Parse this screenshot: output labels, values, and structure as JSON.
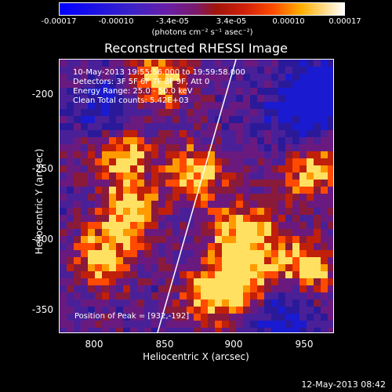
{
  "colorbar": {
    "ticks": [
      "-0.00017",
      "-0.00010",
      "-3.4e-05",
      "3.4e-05",
      "0.00010",
      "0.00017"
    ],
    "unit": "(photons cm⁻² s⁻¹ asec⁻²)"
  },
  "title": "Reconstructed RHESSI Image",
  "info": {
    "time": "10-May-2013 19:55:56.000 to 19:59:58.000",
    "detectors": "Detectors: 3F 5F 6F 7F 8F 9F, Att 0",
    "energy": "Energy Range: 25.0 - 50.0 keV",
    "clean": "Clean     Total counts: 5.42E+03"
  },
  "peak": "Position of Peak = [932,-192]",
  "axes": {
    "xlabel": "Heliocentric X (arcsec)",
    "ylabel": "Heliocentric Y (arcsec)",
    "xticks": [
      "800",
      "850",
      "900",
      "950"
    ],
    "yticks": [
      "-200",
      "-250",
      "-300",
      "-350"
    ]
  },
  "footer": "12-May-2013 08:42",
  "colors": {
    "background": "#000000",
    "limb": "#ffffff"
  }
}
